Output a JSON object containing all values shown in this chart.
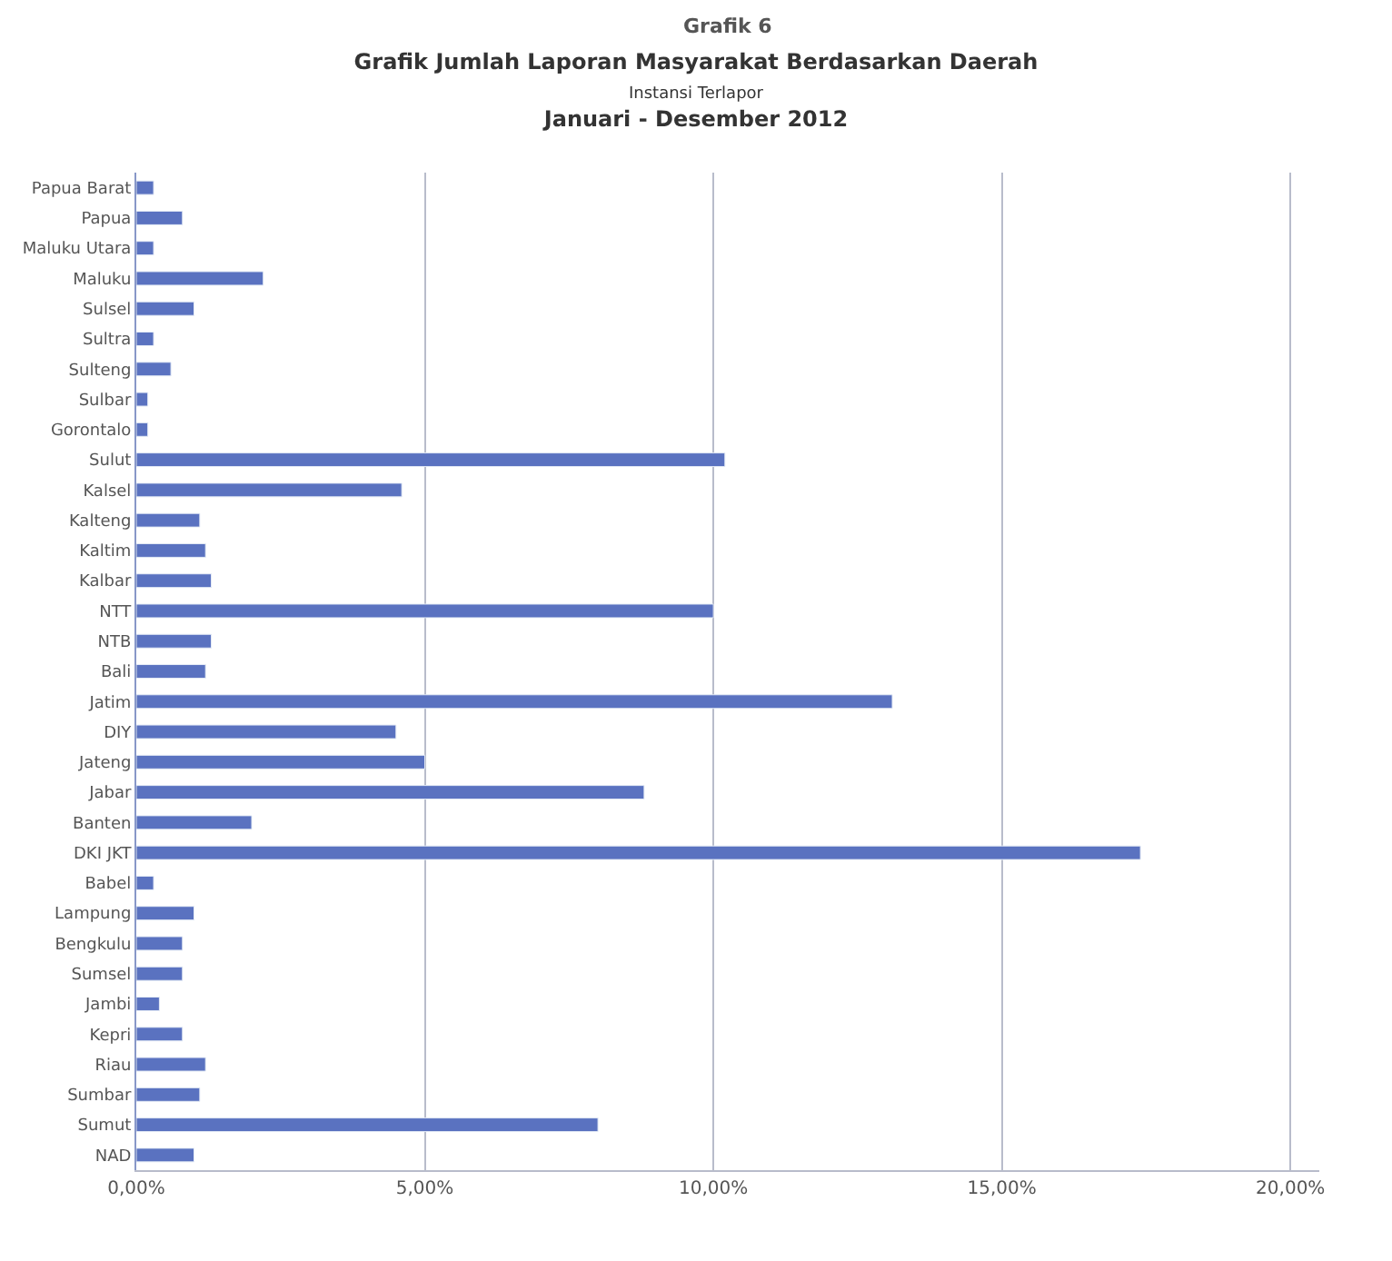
{
  "chart_data": {
    "type": "bar",
    "orientation": "horizontal",
    "title": "Grafik Jumlah Laporan Masyarakat Berdasarkan Daerah",
    "subtitle": "Instansi Terlapor\nJanuari - Desember 2012",
    "annotations": [
      "Grafik 6"
    ],
    "categories": [
      "Papua Barat",
      "Papua",
      "Maluku Utara",
      "Maluku",
      "Sulsel",
      "Sultra",
      "Sulteng",
      "Sulbar",
      "Gorontalo",
      "Sulut",
      "Kalsel",
      "Kalteng",
      "Kaltim",
      "Kalbar",
      "NTT",
      "NTB",
      "Bali",
      "Jatim",
      "DIY",
      "Jateng",
      "Jabar",
      "Banten",
      "DKI JKT",
      "Babel",
      "Lampung",
      "Bengkulu",
      "Sumsel",
      "Jambi",
      "Kepri",
      "Riau",
      "Sumbar",
      "Sumut",
      "NAD"
    ],
    "values": [
      0.3,
      0.8,
      0.3,
      2.2,
      1.0,
      0.3,
      0.6,
      0.2,
      0.2,
      10.2,
      4.6,
      1.1,
      1.2,
      1.3,
      10.0,
      1.3,
      1.2,
      13.1,
      4.5,
      5.0,
      8.8,
      2.0,
      17.4,
      0.3,
      1.0,
      0.8,
      0.8,
      0.4,
      0.8,
      1.2,
      1.1,
      8.0,
      1.0
    ],
    "color": "#5a72c0",
    "xlim": [
      0,
      20.5
    ],
    "xticks": [
      {
        "value": 0,
        "label": "0,00%"
      },
      {
        "value": 5,
        "label": "5,00%"
      },
      {
        "value": 10,
        "label": "10,00%"
      },
      {
        "value": 15,
        "label": "15,00%"
      },
      {
        "value": 20,
        "label": "20,00%"
      }
    ],
    "grid": "x"
  }
}
